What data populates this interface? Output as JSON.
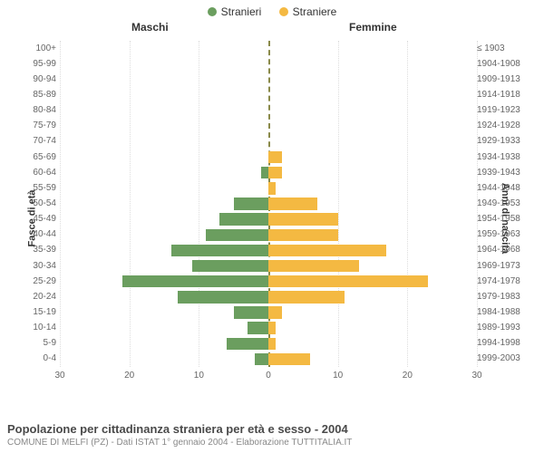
{
  "legend": {
    "male_label": "Stranieri",
    "female_label": "Straniere",
    "male_color": "#6b9e5f",
    "female_color": "#f4b942"
  },
  "headers": {
    "male": "Maschi",
    "female": "Femmine"
  },
  "axis_titles": {
    "left": "Fasce di età",
    "right": "Anni di nascita"
  },
  "footer": {
    "title": "Popolazione per cittadinanza straniera per età e sesso - 2004",
    "subtitle": "COMUNE DI MELFI (PZ) - Dati ISTAT 1° gennaio 2004 - Elaborazione TUTTITALIA.IT"
  },
  "chart": {
    "type": "population-pyramid",
    "xlim": 30,
    "xtick_step": 10,
    "xticks": [
      "30",
      "20",
      "10",
      "0",
      "10",
      "20",
      "30"
    ],
    "grid_color": "#dddddd",
    "center_color": "#8a8a4a",
    "bar_height_ratio": 0.78,
    "male_color": "#6b9e5f",
    "female_color": "#f4b942",
    "rows": [
      {
        "age": "100+",
        "birth": "≤ 1903",
        "m": 0,
        "f": 0
      },
      {
        "age": "95-99",
        "birth": "1904-1908",
        "m": 0,
        "f": 0
      },
      {
        "age": "90-94",
        "birth": "1909-1913",
        "m": 0,
        "f": 0
      },
      {
        "age": "85-89",
        "birth": "1914-1918",
        "m": 0,
        "f": 0
      },
      {
        "age": "80-84",
        "birth": "1919-1923",
        "m": 0,
        "f": 0
      },
      {
        "age": "75-79",
        "birth": "1924-1928",
        "m": 0,
        "f": 0
      },
      {
        "age": "70-74",
        "birth": "1929-1933",
        "m": 0,
        "f": 0
      },
      {
        "age": "65-69",
        "birth": "1934-1938",
        "m": 0,
        "f": 2
      },
      {
        "age": "60-64",
        "birth": "1939-1943",
        "m": 1,
        "f": 2
      },
      {
        "age": "55-59",
        "birth": "1944-1948",
        "m": 0,
        "f": 1
      },
      {
        "age": "50-54",
        "birth": "1949-1953",
        "m": 5,
        "f": 7
      },
      {
        "age": "45-49",
        "birth": "1954-1958",
        "m": 7,
        "f": 10
      },
      {
        "age": "40-44",
        "birth": "1959-1963",
        "m": 9,
        "f": 10
      },
      {
        "age": "35-39",
        "birth": "1964-1968",
        "m": 14,
        "f": 17
      },
      {
        "age": "30-34",
        "birth": "1969-1973",
        "m": 11,
        "f": 13
      },
      {
        "age": "25-29",
        "birth": "1974-1978",
        "m": 21,
        "f": 23
      },
      {
        "age": "20-24",
        "birth": "1979-1983",
        "m": 13,
        "f": 11
      },
      {
        "age": "15-19",
        "birth": "1984-1988",
        "m": 5,
        "f": 2
      },
      {
        "age": "10-14",
        "birth": "1989-1993",
        "m": 3,
        "f": 1
      },
      {
        "age": "5-9",
        "birth": "1994-1998",
        "m": 6,
        "f": 1
      },
      {
        "age": "0-4",
        "birth": "1999-2003",
        "m": 2,
        "f": 6
      }
    ]
  }
}
